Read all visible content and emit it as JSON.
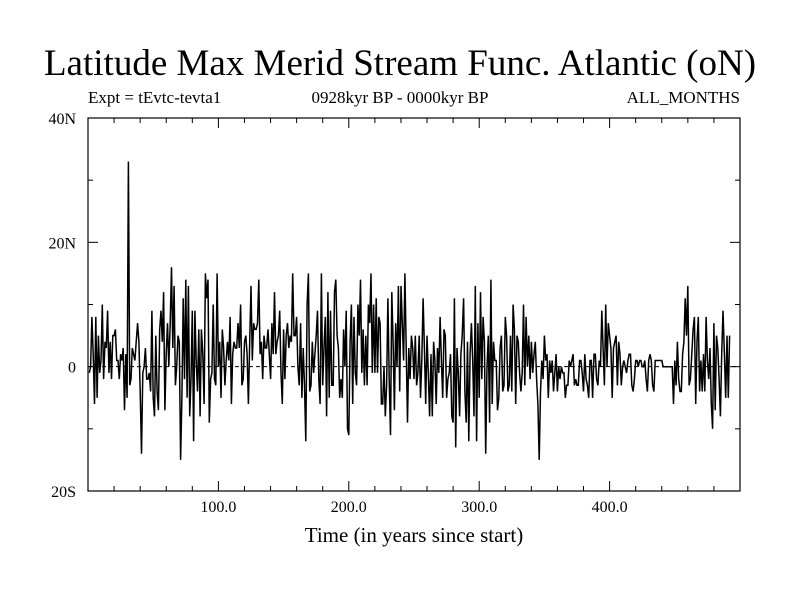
{
  "chart_data": {
    "type": "line",
    "title": "Latitude Max Merid Stream Func. Atlantic (oN)",
    "subtitle_left": "Expt = tEvtc-tevta1",
    "subtitle_center": "0928kyr BP - 0000kyr BP",
    "subtitle_right": "ALL_MONTHS",
    "xlabel": "Time (in years since start)",
    "ylabel": "",
    "xlim": [
      0,
      500
    ],
    "ylim": [
      -20,
      40
    ],
    "x_ticks": [
      100,
      200,
      300,
      400
    ],
    "x_tick_labels": [
      "100.0",
      "200.0",
      "300.0",
      "400.0"
    ],
    "y_ticks": [
      -20,
      0,
      20,
      40
    ],
    "y_tick_labels": [
      "20S",
      "0",
      "20N",
      "40N"
    ],
    "zero_line": "dashed",
    "series": [
      {
        "color": "#000000",
        "x_start": 1,
        "x_step": 1,
        "values": [
          -1,
          0,
          8,
          2,
          -6,
          8,
          -5,
          5,
          -1,
          1,
          10,
          -2,
          4,
          3,
          9,
          -1,
          4,
          -2,
          5,
          5,
          6,
          1,
          1,
          -2,
          2,
          1,
          3,
          -7,
          2,
          -5,
          33,
          -3,
          -2,
          3,
          2,
          1,
          4,
          7,
          4,
          -4,
          -14,
          -1,
          0,
          3,
          -2,
          -2,
          -1,
          -4,
          9,
          -5,
          -8,
          5,
          -4,
          -7,
          6,
          9,
          4,
          12,
          -7,
          2,
          7,
          0,
          7,
          16,
          3,
          13,
          -3,
          0,
          5,
          4,
          -15,
          -5,
          11,
          -2,
          14,
          -5,
          13,
          -8,
          -2,
          9,
          -12,
          9,
          1,
          -4,
          6,
          -8,
          6,
          2,
          -6,
          15,
          11,
          14,
          -9,
          -2,
          -1,
          10,
          -2,
          -3,
          15,
          0,
          4,
          -5,
          6,
          3,
          -3,
          1,
          4,
          1,
          8,
          -6,
          2,
          4,
          3,
          3,
          7,
          3,
          10,
          -3,
          -2,
          4,
          5,
          2,
          -6,
          4,
          13,
          1,
          7,
          6,
          6,
          7,
          14,
          2,
          4,
          -2,
          5,
          3,
          3,
          6,
          2,
          -2,
          7,
          2,
          12,
          2,
          4,
          5,
          9,
          -1,
          -6,
          6,
          -2,
          5,
          7,
          3,
          5,
          4,
          15,
          5,
          5,
          8,
          0,
          -3,
          7,
          -5,
          3,
          -3,
          -12,
          10,
          15,
          -4,
          -3,
          4,
          -1,
          2,
          5,
          9,
          -2,
          -6,
          15,
          -3,
          3,
          8,
          -8,
          12,
          -5,
          9,
          -3,
          -3,
          12,
          14,
          5,
          3,
          -5,
          -2,
          -5,
          6,
          0,
          9,
          -10,
          -11,
          4,
          10,
          -6,
          8,
          -1,
          -3,
          10,
          5,
          14,
          -1,
          6,
          -3,
          5,
          -3,
          10,
          7,
          15,
          -1,
          10,
          -1,
          11,
          -1,
          8,
          7,
          -6,
          -6,
          0,
          -8,
          -3,
          11,
          -2,
          -11,
          12,
          4,
          -7,
          7,
          0,
          13,
          -4,
          13,
          7,
          1,
          15,
          3,
          -9,
          3,
          -2,
          5,
          3,
          -2,
          5,
          -3,
          -1,
          5,
          -5,
          1,
          11,
          3,
          -6,
          5,
          -1,
          -8,
          2,
          -8,
          4,
          1,
          -6,
          3,
          -1,
          8,
          1,
          -5,
          6,
          5,
          -5,
          -2,
          -1,
          2,
          -8,
          -9,
          11,
          -13,
          3,
          -1,
          -8,
          2,
          5,
          11,
          -4,
          -9,
          4,
          -12,
          2,
          7,
          1,
          -8,
          13,
          -12,
          7,
          -5,
          12,
          -2,
          8,
          4,
          -14,
          0,
          5,
          -9,
          14,
          -6,
          4,
          1,
          1,
          -7,
          -5,
          3,
          5,
          -4,
          -3,
          8,
          5,
          -4,
          -3,
          5,
          -4,
          10,
          6,
          -6,
          5,
          4,
          -1,
          -4,
          -1,
          10,
          -3,
          8,
          0,
          5,
          -2,
          4,
          -1,
          2,
          4,
          -2,
          -6,
          -15,
          -4,
          1,
          -2,
          5,
          1,
          2,
          -5,
          1,
          -1,
          1,
          -4,
          -1,
          2,
          -4,
          0,
          -2,
          0,
          -1,
          -1,
          -5,
          -3,
          -3,
          1,
          0,
          1,
          2,
          -3,
          -2,
          -3,
          -3,
          1,
          1,
          -1,
          -4,
          2,
          -2,
          -3,
          -5,
          1,
          1,
          -5,
          2,
          2,
          -2,
          -3,
          1,
          0,
          9,
          3,
          -3,
          10,
          0,
          7,
          5,
          3,
          -5,
          3,
          4,
          5,
          -3,
          4,
          2,
          -3,
          0,
          1,
          0,
          -1,
          1,
          2,
          2,
          -3,
          -4,
          -2,
          1,
          1,
          0,
          1,
          1,
          0,
          0,
          1,
          -2,
          -4,
          1,
          2,
          1,
          -3,
          -4,
          1,
          1,
          1,
          1,
          1,
          1,
          0,
          0,
          0,
          0,
          0,
          0,
          0,
          0,
          -6,
          1,
          -3,
          4,
          -2,
          -4,
          -4,
          2,
          4,
          11,
          5,
          13,
          -3,
          -2,
          2,
          6,
          8,
          -6,
          4,
          8,
          -4,
          1,
          -4,
          2,
          -4,
          8,
          1,
          -2,
          3,
          -6,
          -10,
          7,
          -7,
          5,
          3,
          -2,
          -8,
          2,
          9,
          2,
          -5,
          5,
          -5,
          5
        ]
      }
    ]
  }
}
